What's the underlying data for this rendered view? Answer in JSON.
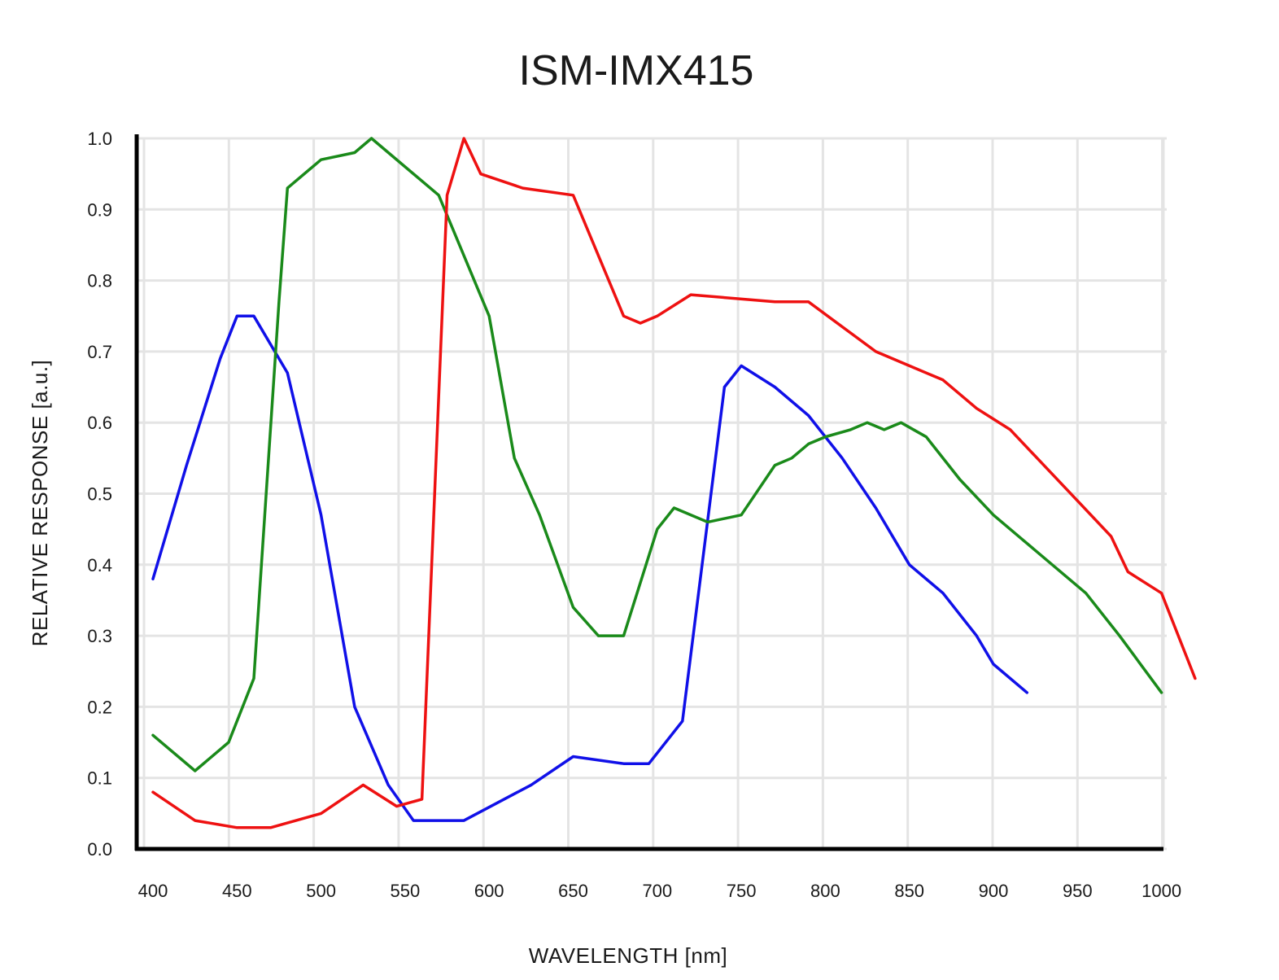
{
  "chart_data": {
    "type": "line",
    "title": "ISM-IMX415",
    "xlabel": "WAVELENGTH [nm]",
    "ylabel": "RELATIVE RESPONSE [a.u.]",
    "xlim": [
      400,
      1000
    ],
    "ylim": [
      0.0,
      1.0
    ],
    "x_ticks": [
      "400",
      "450",
      "500",
      "550",
      "600",
      "650",
      "700",
      "750",
      "800",
      "850",
      "900",
      "950",
      "1000"
    ],
    "y_ticks": [
      "0.0",
      "0.1",
      "0.2",
      "0.3",
      "0.4",
      "0.5",
      "0.6",
      "0.7",
      "0.8",
      "0.9",
      "1.0"
    ],
    "grid": true,
    "legend": "none",
    "series": [
      {
        "color": "#1010e8",
        "points": [
          [
            400,
            0.38
          ],
          [
            420,
            0.54
          ],
          [
            440,
            0.69
          ],
          [
            450,
            0.75
          ],
          [
            460,
            0.75
          ],
          [
            480,
            0.67
          ],
          [
            500,
            0.47
          ],
          [
            520,
            0.2
          ],
          [
            540,
            0.09
          ],
          [
            555,
            0.04
          ],
          [
            565,
            0.04
          ],
          [
            585,
            0.04
          ],
          [
            625,
            0.09
          ],
          [
            650,
            0.13
          ],
          [
            680,
            0.12
          ],
          [
            695,
            0.12
          ],
          [
            715,
            0.18
          ],
          [
            740,
            0.65
          ],
          [
            750,
            0.68
          ],
          [
            770,
            0.65
          ],
          [
            790,
            0.61
          ],
          [
            810,
            0.55
          ],
          [
            830,
            0.48
          ],
          [
            850,
            0.4
          ],
          [
            870,
            0.36
          ],
          [
            890,
            0.3
          ],
          [
            900,
            0.26
          ],
          [
            920,
            0.22
          ]
        ]
      },
      {
        "color": "#1a8a1a",
        "points": [
          [
            400,
            0.16
          ],
          [
            425,
            0.11
          ],
          [
            445,
            0.15
          ],
          [
            460,
            0.24
          ],
          [
            475,
            0.77
          ],
          [
            480,
            0.93
          ],
          [
            500,
            0.97
          ],
          [
            520,
            0.98
          ],
          [
            530,
            1.0
          ],
          [
            570,
            0.92
          ],
          [
            600,
            0.75
          ],
          [
            615,
            0.55
          ],
          [
            630,
            0.47
          ],
          [
            650,
            0.34
          ],
          [
            665,
            0.3
          ],
          [
            680,
            0.3
          ],
          [
            700,
            0.45
          ],
          [
            710,
            0.48
          ],
          [
            730,
            0.46
          ],
          [
            750,
            0.47
          ],
          [
            770,
            0.54
          ],
          [
            780,
            0.55
          ],
          [
            790,
            0.57
          ],
          [
            800,
            0.58
          ],
          [
            815,
            0.59
          ],
          [
            825,
            0.6
          ],
          [
            835,
            0.59
          ],
          [
            845,
            0.6
          ],
          [
            860,
            0.58
          ],
          [
            880,
            0.52
          ],
          [
            900,
            0.47
          ],
          [
            915,
            0.44
          ],
          [
            935,
            0.4
          ],
          [
            955,
            0.36
          ],
          [
            975,
            0.3
          ],
          [
            1000,
            0.22
          ]
        ]
      },
      {
        "color": "#ee1111",
        "points": [
          [
            400,
            0.08
          ],
          [
            425,
            0.04
          ],
          [
            450,
            0.03
          ],
          [
            470,
            0.03
          ],
          [
            500,
            0.05
          ],
          [
            525,
            0.09
          ],
          [
            545,
            0.06
          ],
          [
            560,
            0.07
          ],
          [
            575,
            0.92
          ],
          [
            585,
            1.0
          ],
          [
            595,
            0.95
          ],
          [
            620,
            0.93
          ],
          [
            650,
            0.92
          ],
          [
            680,
            0.75
          ],
          [
            690,
            0.74
          ],
          [
            700,
            0.75
          ],
          [
            720,
            0.78
          ],
          [
            770,
            0.77
          ],
          [
            790,
            0.77
          ],
          [
            830,
            0.7
          ],
          [
            850,
            0.68
          ],
          [
            870,
            0.66
          ],
          [
            890,
            0.62
          ],
          [
            910,
            0.59
          ],
          [
            930,
            0.54
          ],
          [
            950,
            0.49
          ],
          [
            970,
            0.44
          ],
          [
            980,
            0.39
          ],
          [
            1000,
            0.36
          ],
          [
            1020,
            0.24
          ]
        ]
      }
    ]
  }
}
